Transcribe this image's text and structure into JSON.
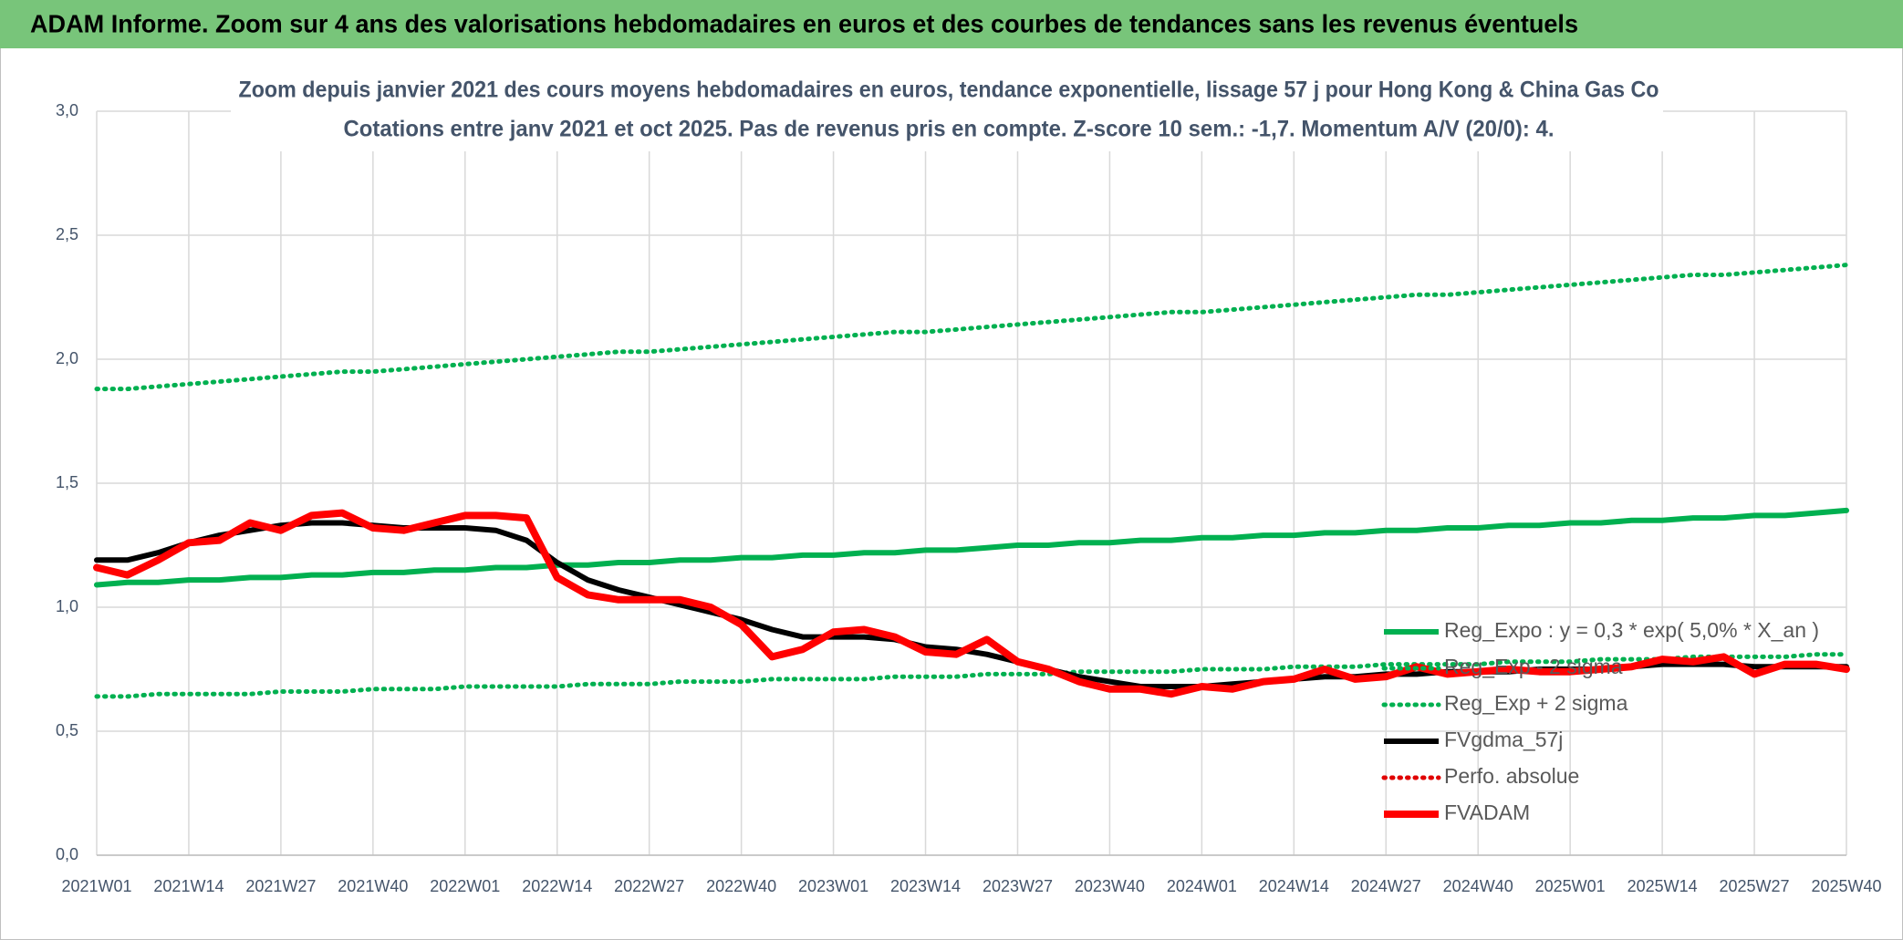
{
  "header": {
    "title": "ADAM Informe. Zoom sur 4 ans des valorisations hebdomadaires en euros et des courbes de tendances sans les revenus éventuels"
  },
  "chart_data": {
    "type": "line",
    "title": "Zoom depuis janvier 2021 des cours moyens hebdomadaires en euros, tendance exponentielle, lissage 57 j pour Hong Kong & China Gas Co",
    "subtitle": "Cotations entre janv 2021 et oct 2025. Pas de revenus pris en compte. Z-score 10 sem.: -1,7. Momentum A/V (20/0): 4.",
    "categories": [
      "2021W01",
      null,
      null,
      "2021W14",
      null,
      null,
      "2021W27",
      null,
      null,
      "2021W40",
      null,
      null,
      "2022W01",
      null,
      null,
      "2022W14",
      null,
      null,
      "2022W27",
      null,
      null,
      "2022W40",
      null,
      null,
      "2023W01",
      null,
      null,
      "2023W14",
      null,
      null,
      "2023W27",
      null,
      null,
      "2023W40",
      null,
      null,
      "2024W01",
      null,
      null,
      "2024W14",
      null,
      null,
      "2024W27",
      null,
      null,
      "2024W40",
      null,
      null,
      "2025W01",
      null,
      null,
      "2025W14",
      null,
      null,
      "2025W27",
      null,
      null,
      "2025W40"
    ],
    "ylim": [
      0,
      3
    ],
    "yticks": [
      {
        "value": 0,
        "label": "0,0"
      },
      {
        "value": 0.5,
        "label": "0,5"
      },
      {
        "value": 1,
        "label": "1,0"
      },
      {
        "value": 1.5,
        "label": "1,5"
      },
      {
        "value": 2,
        "label": "2,0"
      },
      {
        "value": 2.5,
        "label": "2,5"
      },
      {
        "value": 3,
        "label": "3,0"
      }
    ],
    "grid": true,
    "legend": "lower right",
    "series": [
      {
        "name": "Reg_Expo : y = 0,3 * exp( 5,0% *  X_an )",
        "color": "#00b050",
        "style": "solid",
        "values": [
          1.09,
          1.1,
          1.1,
          1.11,
          1.11,
          1.12,
          1.12,
          1.13,
          1.13,
          1.14,
          1.14,
          1.15,
          1.15,
          1.16,
          1.16,
          1.17,
          1.17,
          1.18,
          1.18,
          1.19,
          1.19,
          1.2,
          1.2,
          1.21,
          1.21,
          1.22,
          1.22,
          1.23,
          1.23,
          1.24,
          1.25,
          1.25,
          1.26,
          1.26,
          1.27,
          1.27,
          1.28,
          1.28,
          1.29,
          1.29,
          1.3,
          1.3,
          1.31,
          1.31,
          1.32,
          1.32,
          1.33,
          1.33,
          1.34,
          1.34,
          1.35,
          1.35,
          1.36,
          1.36,
          1.37,
          1.37,
          1.38,
          1.39
        ]
      },
      {
        "name": "Reg_Exp - 2 sigma",
        "color": "#00b050",
        "style": "dotted",
        "values": [
          0.64,
          0.64,
          0.65,
          0.65,
          0.65,
          0.65,
          0.66,
          0.66,
          0.66,
          0.67,
          0.67,
          0.67,
          0.68,
          0.68,
          0.68,
          0.68,
          0.69,
          0.69,
          0.69,
          0.7,
          0.7,
          0.7,
          0.71,
          0.71,
          0.71,
          0.71,
          0.72,
          0.72,
          0.72,
          0.73,
          0.73,
          0.73,
          0.74,
          0.74,
          0.74,
          0.74,
          0.75,
          0.75,
          0.75,
          0.76,
          0.76,
          0.76,
          0.77,
          0.77,
          0.77,
          0.77,
          0.78,
          0.78,
          0.78,
          0.79,
          0.79,
          0.79,
          0.8,
          0.8,
          0.8,
          0.8,
          0.81,
          0.81
        ]
      },
      {
        "name": "Reg_Exp + 2 sigma",
        "color": "#00b050",
        "style": "dotted",
        "values": [
          1.88,
          1.88,
          1.89,
          1.9,
          1.91,
          1.92,
          1.93,
          1.94,
          1.95,
          1.95,
          1.96,
          1.97,
          1.98,
          1.99,
          2.0,
          2.01,
          2.02,
          2.03,
          2.03,
          2.04,
          2.05,
          2.06,
          2.07,
          2.08,
          2.09,
          2.1,
          2.11,
          2.11,
          2.12,
          2.13,
          2.14,
          2.15,
          2.16,
          2.17,
          2.18,
          2.19,
          2.19,
          2.2,
          2.21,
          2.22,
          2.23,
          2.24,
          2.25,
          2.26,
          2.26,
          2.27,
          2.28,
          2.29,
          2.3,
          2.31,
          2.32,
          2.33,
          2.34,
          2.34,
          2.35,
          2.36,
          2.37,
          2.38
        ]
      },
      {
        "name": "FVgdma_57j",
        "color": "#000000",
        "style": "solid",
        "values": [
          1.19,
          1.19,
          1.22,
          1.26,
          1.29,
          1.31,
          1.33,
          1.34,
          1.34,
          1.33,
          1.32,
          1.32,
          1.32,
          1.31,
          1.27,
          1.18,
          1.11,
          1.07,
          1.04,
          1.01,
          0.98,
          0.95,
          0.91,
          0.88,
          0.88,
          0.88,
          0.87,
          0.84,
          0.83,
          0.81,
          0.78,
          0.75,
          0.72,
          0.7,
          0.68,
          0.68,
          0.68,
          0.69,
          0.7,
          0.71,
          0.72,
          0.72,
          0.73,
          0.73,
          0.74,
          0.74,
          0.74,
          0.75,
          0.75,
          0.75,
          0.76,
          0.77,
          0.77,
          0.77,
          0.76,
          0.76,
          0.76,
          0.76
        ]
      },
      {
        "name": "Perfo. absolue",
        "color": "#e00000",
        "style": "dotted",
        "values": [
          null,
          null,
          null,
          null,
          null,
          null,
          null,
          null,
          null,
          null,
          null,
          null,
          null,
          null,
          null,
          null,
          null,
          null,
          null,
          null,
          null,
          null,
          null,
          null,
          null,
          null,
          null,
          null,
          null,
          null,
          null,
          null,
          null,
          null,
          null,
          null,
          null,
          null,
          null,
          null,
          null,
          null,
          null,
          null,
          null,
          null,
          null,
          null,
          null,
          null,
          null,
          null,
          null,
          null,
          null,
          null,
          null,
          null
        ]
      },
      {
        "name": "FVADAM",
        "color": "#ff0000",
        "style": "bold",
        "values": [
          1.16,
          1.13,
          1.19,
          1.26,
          1.27,
          1.34,
          1.31,
          1.37,
          1.38,
          1.32,
          1.31,
          1.34,
          1.37,
          1.37,
          1.36,
          1.12,
          1.05,
          1.03,
          1.03,
          1.03,
          1.0,
          0.93,
          0.8,
          0.83,
          0.9,
          0.91,
          0.88,
          0.82,
          0.81,
          0.87,
          0.78,
          0.75,
          0.7,
          0.67,
          0.67,
          0.65,
          0.68,
          0.67,
          0.7,
          0.71,
          0.75,
          0.71,
          0.72,
          0.76,
          0.73,
          0.74,
          0.75,
          0.74,
          0.74,
          0.75,
          0.76,
          0.79,
          0.78,
          0.8,
          0.73,
          0.77,
          0.77,
          0.75
        ]
      }
    ]
  }
}
